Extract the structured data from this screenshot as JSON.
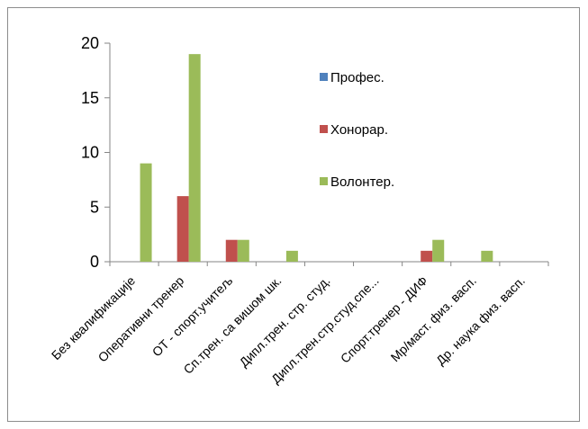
{
  "chart_data": {
    "type": "bar",
    "title": "",
    "xlabel": "",
    "ylabel": "",
    "ylim": [
      0,
      20
    ],
    "yticks": [
      0,
      5,
      10,
      15,
      20
    ],
    "grid": false,
    "legend_position": "inside-top-right",
    "categories": [
      "Без квалификације",
      "Оперативни тренер",
      "ОТ - спорт.учитељ",
      "Сп.трен. са вишом шк.",
      "Дипл.трен. стр. студ.",
      "Дипл.трен.стр.студ.спе...",
      "Спорт.тренер - ДИФ",
      "Мр/маст. физ. васп.",
      "Др. наука физ. васп."
    ],
    "series": [
      {
        "name": "Профес.",
        "color": "#4f81bd",
        "values": [
          0,
          0,
          0,
          0,
          0,
          0,
          0,
          0,
          0
        ]
      },
      {
        "name": "Хонорар.",
        "color": "#c0504d",
        "values": [
          0,
          6,
          2,
          0,
          0,
          0,
          1,
          0,
          0
        ]
      },
      {
        "name": "Волонтер.",
        "color": "#9bbb59",
        "values": [
          9,
          19,
          2,
          1,
          0,
          0,
          2,
          1,
          0
        ]
      }
    ]
  }
}
